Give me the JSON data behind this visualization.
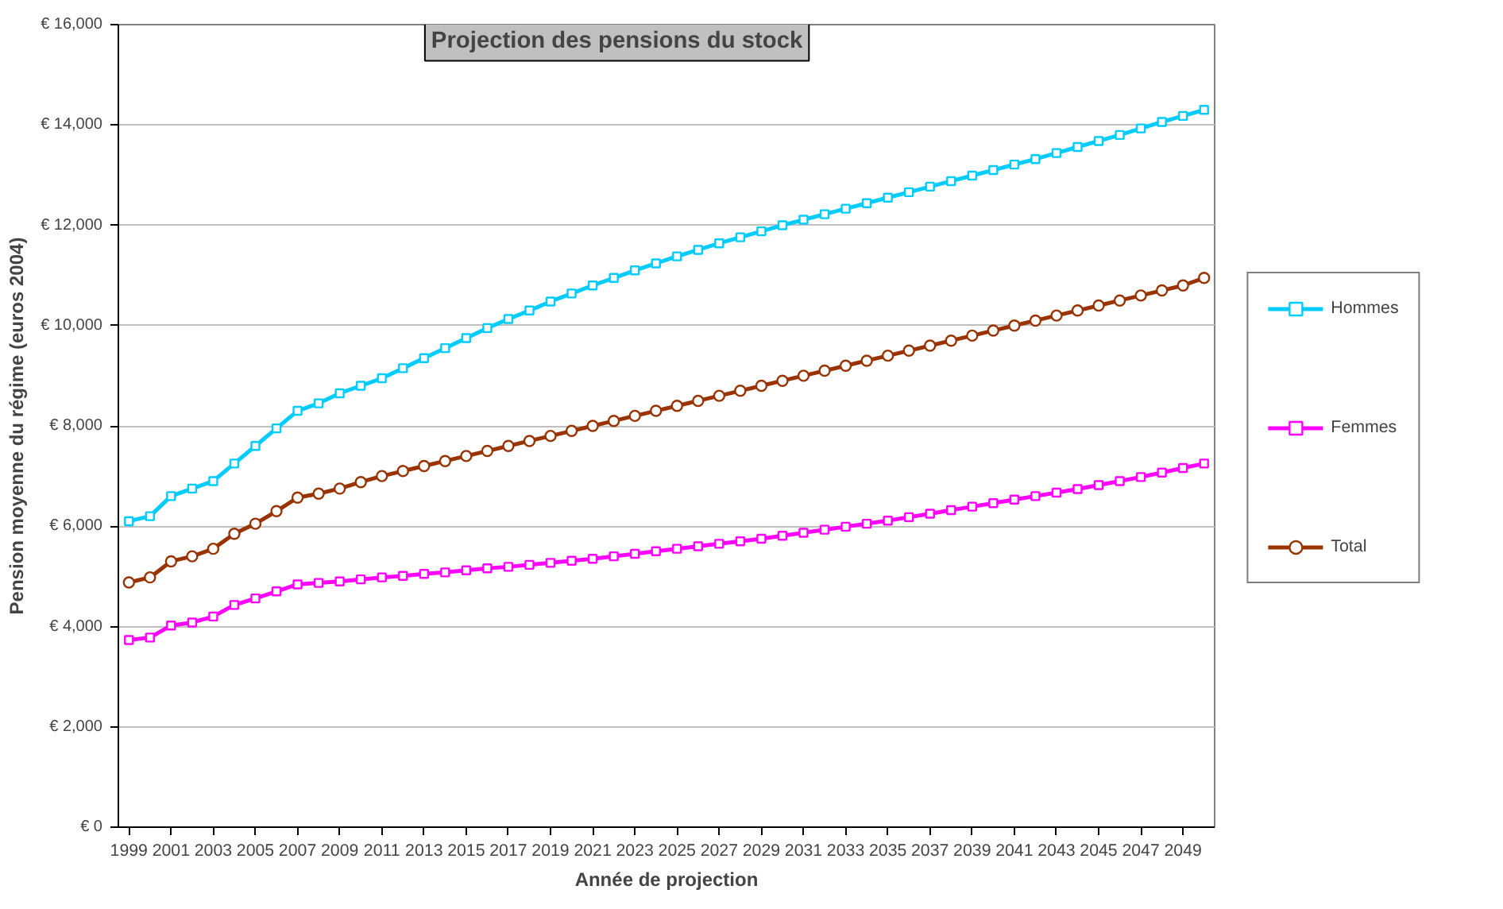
{
  "chart_data": {
    "type": "line",
    "title": "Projection des pensions du stock",
    "xlabel": "Année de projection",
    "ylabel": "Pension moyenne du régime (euros 2004)",
    "categories": [
      "1999",
      null,
      "2001",
      null,
      "2003",
      null,
      "2005",
      null,
      "2007",
      null,
      "2009",
      null,
      "2011",
      null,
      "2013",
      null,
      "2015",
      null,
      "2017",
      null,
      "2019",
      null,
      "2021",
      null,
      "2023",
      null,
      "2025",
      null,
      "2027",
      null,
      "2029",
      null,
      "2031",
      null,
      "2033",
      null,
      "2035",
      null,
      "2037",
      null,
      "2039",
      null,
      "2041",
      null,
      "2043",
      null,
      "2045",
      null,
      "2047",
      null,
      "2049",
      null
    ],
    "ylim": [
      0,
      16000
    ],
    "yticks": [
      {
        "value": 0,
        "label": "€ 0"
      },
      {
        "value": 2000,
        "label": "€ 2,000"
      },
      {
        "value": 4000,
        "label": "€ 4,000"
      },
      {
        "value": 6000,
        "label": "€ 6,000"
      },
      {
        "value": 8000,
        "label": "€ 8,000"
      },
      {
        "value": 10000,
        "label": "€ 10,000"
      },
      {
        "value": 12000,
        "label": "€ 12,000"
      },
      {
        "value": 14000,
        "label": "€ 14,000"
      },
      {
        "value": 16000,
        "label": "€ 16,000"
      }
    ],
    "grid": "y",
    "legend": "right",
    "line_style": "solid",
    "series": [
      {
        "name": "Hommes",
        "color": "#00ccff",
        "marker": "square",
        "values": [
          6100,
          6200,
          6600,
          6750,
          6900,
          7250,
          7600,
          7950,
          8300,
          8450,
          8650,
          8800,
          8950,
          9150,
          9350,
          9550,
          9750,
          9950,
          10130,
          10300,
          10480,
          10640,
          10800,
          10950,
          11100,
          11240,
          11380,
          11510,
          11640,
          11760,
          11880,
          12000,
          12110,
          12220,
          12330,
          12440,
          12550,
          12660,
          12770,
          12880,
          12990,
          13100,
          13210,
          13320,
          13440,
          13560,
          13680,
          13800,
          13930,
          14060,
          14180,
          14300
        ]
      },
      {
        "name": "Femmes",
        "color": "#ff00ff",
        "marker": "square",
        "values": [
          3730,
          3780,
          4020,
          4080,
          4200,
          4430,
          4560,
          4700,
          4840,
          4870,
          4900,
          4940,
          4980,
          5010,
          5050,
          5080,
          5120,
          5160,
          5190,
          5230,
          5270,
          5310,
          5350,
          5400,
          5450,
          5500,
          5550,
          5600,
          5650,
          5700,
          5750,
          5810,
          5870,
          5930,
          5990,
          6050,
          6110,
          6180,
          6250,
          6320,
          6390,
          6460,
          6530,
          6600,
          6670,
          6740,
          6820,
          6900,
          6980,
          7070,
          7160,
          7250
        ]
      },
      {
        "name": "Total",
        "color": "#993300",
        "marker": "circle",
        "values": [
          4880,
          4980,
          5300,
          5400,
          5550,
          5850,
          6050,
          6300,
          6570,
          6650,
          6750,
          6880,
          7000,
          7100,
          7200,
          7300,
          7400,
          7500,
          7600,
          7700,
          7800,
          7900,
          8000,
          8100,
          8200,
          8300,
          8400,
          8500,
          8600,
          8700,
          8800,
          8900,
          9000,
          9100,
          9200,
          9300,
          9400,
          9500,
          9600,
          9700,
          9800,
          9900,
          10000,
          10100,
          10200,
          10300,
          10400,
          10500,
          10600,
          10700,
          10800,
          10950
        ]
      }
    ]
  }
}
